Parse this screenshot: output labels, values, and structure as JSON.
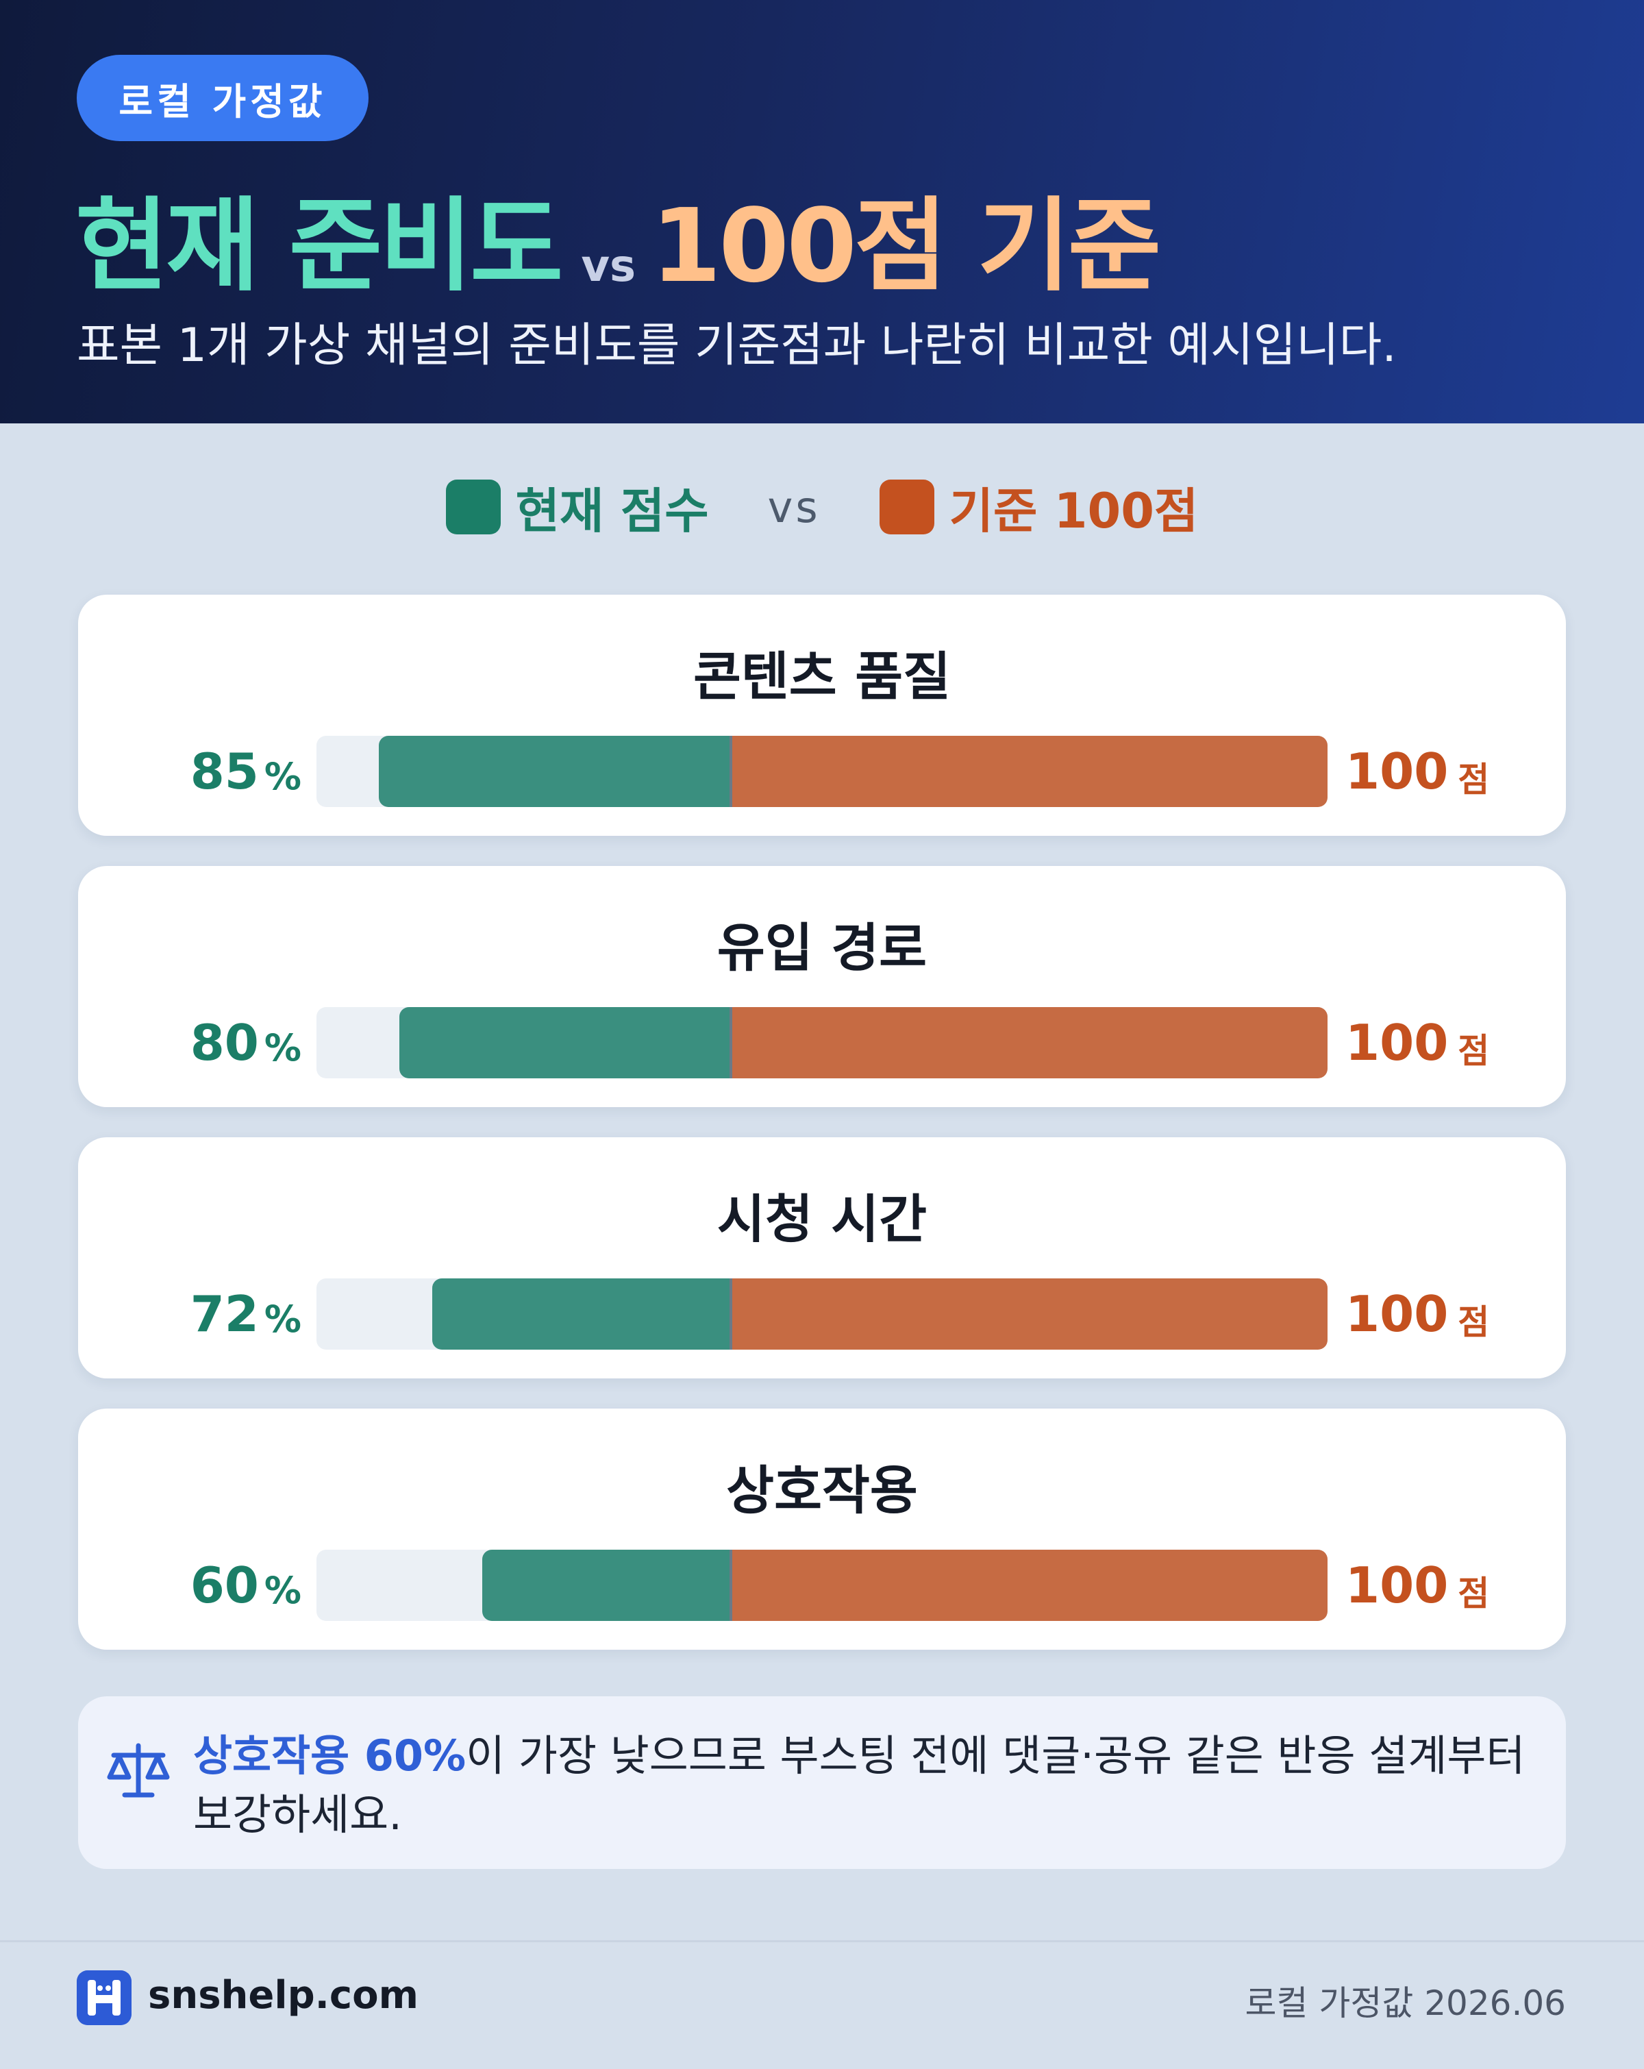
{
  "header": {
    "badge": "로컬 가정값",
    "title_current": "현재 준비도",
    "title_vs": "vs",
    "title_base": "100점 기준",
    "subtitle": "표본 1개 가상 채널의 준비도를 기준점과 나란히 비교한 예시입니다."
  },
  "legend": {
    "current": "현재 점수",
    "vs": "vs",
    "base": "기준 100점"
  },
  "chart_data": {
    "type": "bar",
    "categories": [
      "콘텐츠 품질",
      "유입 경로",
      "시청 시간",
      "상호작용"
    ],
    "series": [
      {
        "name": "현재 점수",
        "values": [
          85,
          80,
          72,
          60
        ],
        "unit": "%"
      },
      {
        "name": "기준 100점",
        "values": [
          100,
          100,
          100,
          100
        ],
        "unit": "점"
      }
    ],
    "ylim": [
      0,
      100
    ],
    "colors": {
      "current": "#3a8f7f",
      "base": "#c66b43",
      "track": "#ebf0f5"
    }
  },
  "rows": [
    {
      "label": "콘텐츠 품질",
      "current": "85",
      "current_unit": "%",
      "base": "100",
      "base_unit": "점"
    },
    {
      "label": "유입 경로",
      "current": "80",
      "current_unit": "%",
      "base": "100",
      "base_unit": "점"
    },
    {
      "label": "시청 시간",
      "current": "72",
      "current_unit": "%",
      "base": "100",
      "base_unit": "점"
    },
    {
      "label": "상호작용",
      "current": "60",
      "current_unit": "%",
      "base": "100",
      "base_unit": "점"
    }
  ],
  "insight": {
    "icon": "scale-icon",
    "highlight": "상호작용 60%",
    "text": "이 가장 낮으므로 부스팅 전에 댓글·공유 같은 반응 설계부터 보강하세요."
  },
  "footer": {
    "brand": "snshelp.com",
    "note": "로컬 가정값 2026.06"
  }
}
